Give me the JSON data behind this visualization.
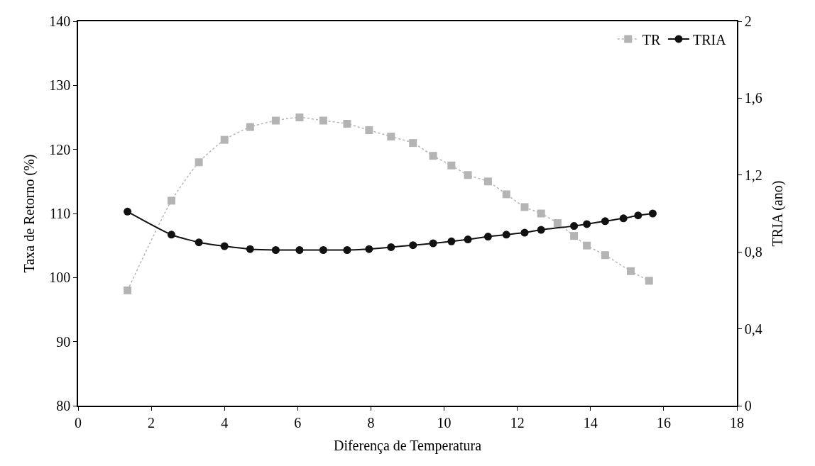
{
  "chart_data": {
    "type": "line",
    "xlabel": "Diferença de Temperatura",
    "ylabel": "Taxa de Retorno (%)",
    "y2label": "TRIA (ano)",
    "xlim": [
      0,
      18
    ],
    "xticks": [
      0,
      2,
      4,
      6,
      8,
      10,
      12,
      14,
      16,
      18
    ],
    "ylim": [
      80,
      140
    ],
    "yticks": [
      80,
      90,
      100,
      110,
      120,
      130,
      140
    ],
    "y2lim": [
      0,
      2
    ],
    "y2ticks": [
      {
        "value": 0,
        "label": "0"
      },
      {
        "value": 0.4,
        "label": "0,4"
      },
      {
        "value": 0.8,
        "label": "0,8"
      },
      {
        "value": 1.2,
        "label": "1,2"
      },
      {
        "value": 1.6,
        "label": "1,6"
      },
      {
        "value": 2,
        "label": "2"
      }
    ],
    "legend": "top right",
    "series": [
      {
        "name": "TR",
        "color": "#b4b4b4",
        "marker": "square",
        "line_style": "dotted",
        "x": [
          1.35,
          2.55,
          3.3,
          4.0,
          4.7,
          5.4,
          6.05,
          6.7,
          7.35,
          7.95,
          8.55,
          9.15,
          9.7,
          10.2,
          10.65,
          11.2,
          11.7,
          12.2,
          12.65,
          13.1,
          13.55,
          13.9,
          14.4,
          15.1,
          15.6
        ],
        "values": [
          98,
          112,
          118,
          121.5,
          123.5,
          124.5,
          125,
          124.5,
          124,
          123,
          122,
          121,
          119,
          117.5,
          116,
          115,
          113,
          111,
          110,
          108.5,
          106.5,
          105,
          103.5,
          101,
          99.5
        ]
      },
      {
        "name": "TRIA",
        "color": "#111111",
        "marker": "circle",
        "line_style": "solid",
        "axis": "y2",
        "x": [
          1.35,
          2.55,
          3.3,
          4.0,
          4.7,
          5.4,
          6.05,
          6.7,
          7.35,
          7.95,
          8.55,
          9.15,
          9.7,
          10.2,
          10.65,
          11.2,
          11.7,
          12.2,
          12.65,
          13.55,
          13.9,
          14.4,
          14.9,
          15.3,
          15.7
        ],
        "values": [
          1.01,
          0.89,
          0.85,
          0.83,
          0.815,
          0.81,
          0.81,
          0.81,
          0.81,
          0.815,
          0.825,
          0.835,
          0.845,
          0.855,
          0.865,
          0.88,
          0.89,
          0.9,
          0.915,
          0.935,
          0.945,
          0.96,
          0.975,
          0.99,
          1.0
        ]
      }
    ]
  }
}
